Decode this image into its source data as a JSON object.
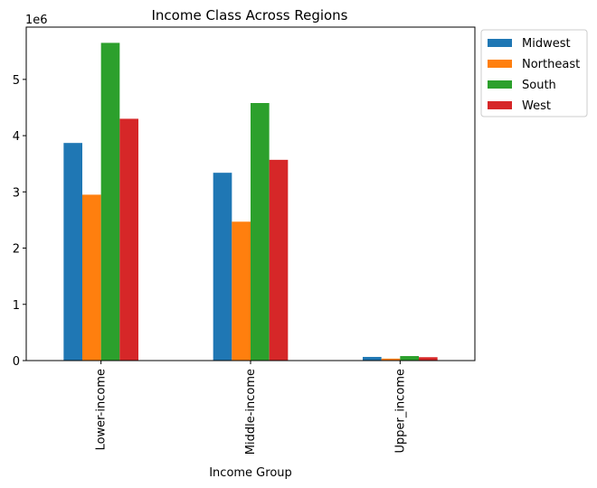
{
  "chart_data": {
    "type": "bar",
    "title": "Income Class Across Regions",
    "xlabel": "Income Group",
    "ylabel": "",
    "y_offset_label": "1e6",
    "categories": [
      "Lower-income",
      "Middle-income",
      "Upper_income"
    ],
    "series": [
      {
        "name": "Midwest",
        "color": "#1f77b4",
        "values": [
          3870000,
          3340000,
          65000
        ]
      },
      {
        "name": "Northeast",
        "color": "#ff7f0e",
        "values": [
          2950000,
          2470000,
          35000
        ]
      },
      {
        "name": "South",
        "color": "#2ca02c",
        "values": [
          5650000,
          4580000,
          80000
        ]
      },
      {
        "name": "West",
        "color": "#d62728",
        "values": [
          4300000,
          3570000,
          60000
        ]
      }
    ],
    "yticks": [
      0,
      1,
      2,
      3,
      4,
      5
    ],
    "ylim": [
      0,
      5930000
    ],
    "legend_position": "outside upper right",
    "grid": false
  }
}
